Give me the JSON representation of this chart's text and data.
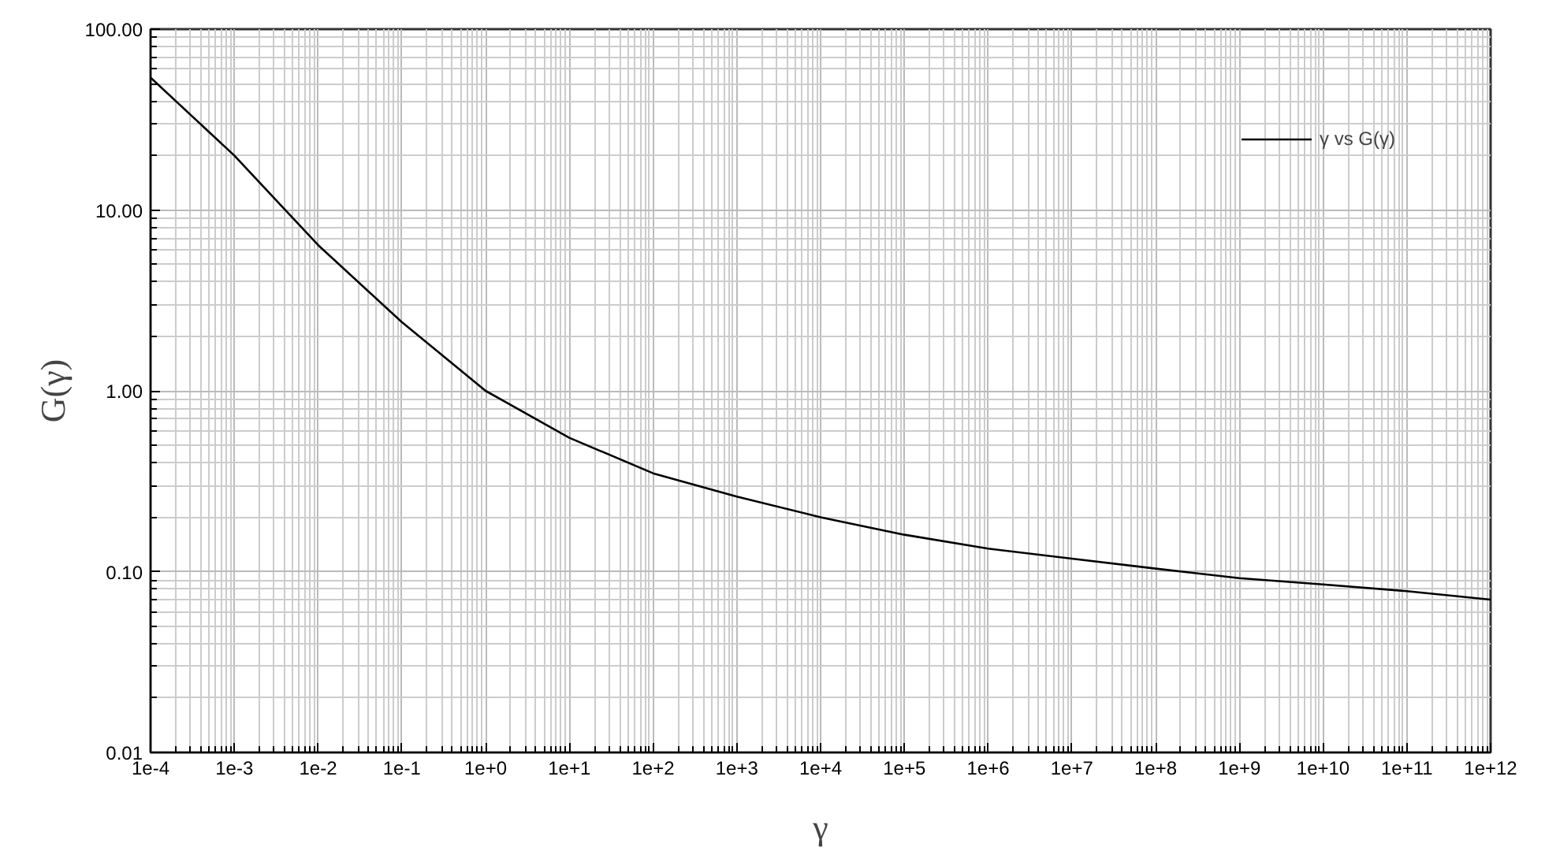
{
  "chart_data": {
    "type": "line",
    "xlabel": "γ",
    "ylabel": "G(γ)",
    "log": "xy",
    "grid": true,
    "legend": "top right",
    "line_style": "solid",
    "marker": "none",
    "x": [
      0.0001,
      0.001,
      0.01,
      0.1,
      1,
      10,
      100,
      1000,
      10000,
      100000,
      1000000,
      10000000,
      100000000,
      1000000000,
      10000000000,
      100000000000,
      1000000000000
    ],
    "series": [
      {
        "name": "γ vs G(γ)",
        "color": "#000000",
        "values": [
          54,
          20,
          6.4,
          2.4,
          1.0,
          0.55,
          0.35,
          0.26,
          0.2,
          0.16,
          0.134,
          0.118,
          0.104,
          0.092,
          0.085,
          0.078,
          0.07
        ]
      }
    ],
    "xlim": [
      0.0001,
      1000000000000
    ],
    "xticks": [
      {
        "value": 0.0001,
        "label": "1e-4"
      },
      {
        "value": 0.001,
        "label": "1e-3"
      },
      {
        "value": 0.01,
        "label": "1e-2"
      },
      {
        "value": 0.1,
        "label": "1e-1"
      },
      {
        "value": 1,
        "label": "1e+0"
      },
      {
        "value": 10,
        "label": "1e+1"
      },
      {
        "value": 100,
        "label": "1e+2"
      },
      {
        "value": 1000,
        "label": "1e+3"
      },
      {
        "value": 10000,
        "label": "1e+4"
      },
      {
        "value": 100000,
        "label": "1e+5"
      },
      {
        "value": 1000000,
        "label": "1e+6"
      },
      {
        "value": 10000000,
        "label": "1e+7"
      },
      {
        "value": 100000000,
        "label": "1e+8"
      },
      {
        "value": 1000000000,
        "label": "1e+9"
      },
      {
        "value": 10000000000,
        "label": "1e+10"
      },
      {
        "value": 100000000000,
        "label": "1e+11"
      },
      {
        "value": 1000000000000,
        "label": "1e+12"
      }
    ],
    "ylim": [
      0.01,
      100
    ],
    "yticks": [
      {
        "value": 0.01,
        "label": "0.01"
      },
      {
        "value": 0.1,
        "label": "0.10"
      },
      {
        "value": 1,
        "label": "1.00"
      },
      {
        "value": 10,
        "label": "10.00"
      },
      {
        "value": 100,
        "label": "100.00"
      }
    ]
  }
}
